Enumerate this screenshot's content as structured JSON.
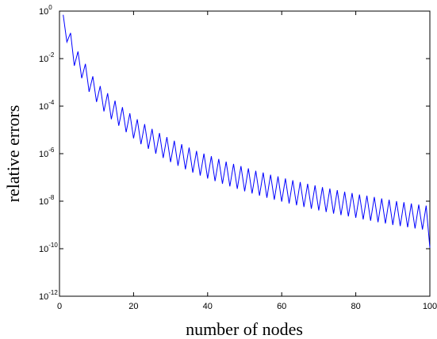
{
  "chart_data": {
    "type": "line",
    "xlabel": "number of nodes",
    "ylabel": "relative errors",
    "xlim": [
      0,
      100
    ],
    "ylim_log10": [
      -12,
      0
    ],
    "y_scale": "log",
    "grid": false,
    "legend": "none",
    "x_ticks": [
      "0",
      "20",
      "40",
      "60",
      "80",
      "100"
    ],
    "y_ticks": [
      {
        "base": "10",
        "exp": "0"
      },
      {
        "base": "10",
        "exp": "-2"
      },
      {
        "base": "10",
        "exp": "-4"
      },
      {
        "base": "10",
        "exp": "-6"
      },
      {
        "base": "10",
        "exp": "-8"
      },
      {
        "base": "10",
        "exp": "-10"
      },
      {
        "base": "10",
        "exp": "-12"
      }
    ],
    "series": [
      {
        "color": "#0000ff",
        "x": [
          1,
          2,
          3,
          4,
          5,
          6,
          7,
          8,
          9,
          10,
          11,
          12,
          13,
          14,
          15,
          16,
          17,
          18,
          19,
          20,
          21,
          22,
          23,
          24,
          25,
          26,
          27,
          28,
          29,
          30,
          31,
          32,
          33,
          34,
          35,
          36,
          37,
          38,
          39,
          40,
          41,
          42,
          43,
          44,
          45,
          46,
          47,
          48,
          49,
          50,
          51,
          52,
          53,
          54,
          55,
          56,
          57,
          58,
          59,
          60,
          61,
          62,
          63,
          64,
          65,
          66,
          67,
          68,
          69,
          70,
          71,
          72,
          73,
          74,
          75,
          76,
          77,
          78,
          79,
          80,
          81,
          82,
          83,
          84,
          85,
          86,
          87,
          88,
          89,
          90,
          91,
          92,
          93,
          94,
          95,
          96,
          97,
          98,
          99,
          100
        ],
        "y": [
          0.7,
          0.05,
          0.12,
          0.005,
          0.02,
          0.0015,
          0.006,
          0.0004,
          0.0018,
          0.00015,
          0.0007,
          6e-05,
          0.00035,
          2.8e-05,
          0.00017,
          1.5e-05,
          9e-05,
          8e-06,
          5e-05,
          4.4e-06,
          2.8e-05,
          2.5e-06,
          1.75e-05,
          1.6e-06,
          1.1e-05,
          1e-06,
          7.4e-06,
          6.6e-07,
          5e-06,
          4.4e-07,
          3.5e-06,
          3.1e-07,
          2.5e-06,
          2.2e-07,
          1.8e-06,
          1.6e-07,
          1.3e-06,
          1.2e-07,
          1e-06,
          9e-08,
          7.8e-07,
          7e-08,
          6e-07,
          5.4e-08,
          4.6e-07,
          4.2e-08,
          3.7e-07,
          3.3e-08,
          3e-07,
          2.6e-08,
          2.4e-07,
          2.1e-08,
          1.9e-07,
          1.7e-08,
          1.6e-07,
          1.4e-08,
          1.3e-07,
          1.15e-08,
          1.1e-07,
          9.6e-09,
          9e-08,
          8e-09,
          7.6e-08,
          6.7e-09,
          6.4e-08,
          5.7e-09,
          5.4e-08,
          4.8e-09,
          4.6e-08,
          4.1e-09,
          3.9e-08,
          3.5e-09,
          3.4e-08,
          3e-09,
          2.9e-08,
          2.6e-09,
          2.5e-08,
          2.3e-09,
          2.2e-08,
          2e-09,
          1.9e-08,
          1.7e-09,
          1.7e-08,
          1.5e-09,
          1.5e-08,
          1.3e-09,
          1.3e-08,
          1.15e-09,
          1.15e-08,
          1e-09,
          1e-08,
          9e-10,
          9e-09,
          8e-10,
          8e-09,
          7.1e-10,
          7.2e-09,
          6.4e-10,
          6.5e-09,
          1.1e-10
        ]
      }
    ]
  }
}
